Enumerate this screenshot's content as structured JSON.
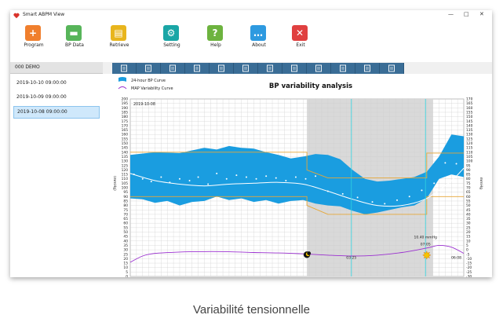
{
  "window": {
    "title": "Smart ABPM View"
  },
  "toolbar": [
    {
      "label": "Program",
      "icon": "add-user-icon",
      "color": "#f07f2d",
      "glyph": "+"
    },
    {
      "label": "BP Data",
      "icon": "folder-icon",
      "color": "#57b55a",
      "glyph": "▬"
    },
    {
      "label": "Retrieve",
      "icon": "document-icon",
      "color": "#e8b51d",
      "glyph": "▤"
    },
    {
      "label": "Setting",
      "icon": "gear-icon",
      "color": "#1aa6a6",
      "glyph": "⚙"
    },
    {
      "label": "Help",
      "icon": "help-icon",
      "color": "#6db33f",
      "glyph": "?"
    },
    {
      "label": "About",
      "icon": "chat-bubble-icon",
      "color": "#2e9ae0",
      "glyph": "…"
    },
    {
      "label": "Exit",
      "icon": "close-icon",
      "color": "#e04040",
      "glyph": "✕"
    }
  ],
  "sidebar": {
    "header": "000 DEMO",
    "items": [
      {
        "label": "2019-10-10 09:00:00",
        "selected": false
      },
      {
        "label": "2019-10-09 09:00:00",
        "selected": false
      },
      {
        "label": "2019-10-08 09:00:00",
        "selected": true
      }
    ]
  },
  "tabs": [
    "edit-icon",
    "print-list-icon",
    "line-chart-icon",
    "scatter-icon",
    "bar-chart-icon",
    "pie-icon",
    "bp-variability-icon",
    "report-icon",
    "document-icon",
    "pdf-icon",
    "printer-icon",
    "export-icon"
  ],
  "chart_data": {
    "type": "area",
    "title": "BP variability analysis",
    "date_label": "2019-10-08",
    "legend": [
      {
        "name": "24-hour BP Curve",
        "color": "#1a9de0"
      },
      {
        "name": "MAP Variability Curve",
        "color": "#9b30d0"
      }
    ],
    "left_axis": {
      "label": "(mmHg)",
      "min": 0,
      "max": 200,
      "step": 5
    },
    "right_axis": {
      "label": "mmHg",
      "min": -30,
      "max": 170,
      "step": 5
    },
    "x_range": [
      0,
      27
    ],
    "band_upper": [
      [
        0,
        137
      ],
      [
        2,
        140
      ],
      [
        4,
        139
      ],
      [
        5,
        142
      ],
      [
        6,
        145
      ],
      [
        7,
        143
      ],
      [
        8,
        147
      ],
      [
        9,
        145
      ],
      [
        10,
        144
      ],
      [
        11,
        140
      ],
      [
        12,
        137
      ],
      [
        13,
        133
      ],
      [
        14,
        135
      ],
      [
        15,
        138
      ],
      [
        16,
        137
      ],
      [
        17,
        132
      ],
      [
        18,
        120
      ],
      [
        19,
        110
      ],
      [
        20,
        107
      ],
      [
        21,
        108
      ],
      [
        22,
        110
      ],
      [
        23,
        112
      ],
      [
        24,
        118
      ],
      [
        25,
        135
      ],
      [
        26,
        160
      ],
      [
        27,
        158
      ]
    ],
    "band_lower": [
      [
        0,
        88
      ],
      [
        1,
        87
      ],
      [
        2,
        83
      ],
      [
        3,
        85
      ],
      [
        4,
        80
      ],
      [
        5,
        84
      ],
      [
        6,
        85
      ],
      [
        7,
        90
      ],
      [
        8,
        86
      ],
      [
        9,
        88
      ],
      [
        10,
        84
      ],
      [
        11,
        86
      ],
      [
        12,
        82
      ],
      [
        13,
        85
      ],
      [
        14,
        86
      ],
      [
        15,
        82
      ],
      [
        16,
        80
      ],
      [
        17,
        79
      ],
      [
        18,
        74
      ],
      [
        19,
        70
      ],
      [
        20,
        72
      ],
      [
        21,
        75
      ],
      [
        22,
        78
      ],
      [
        23,
        80
      ],
      [
        24,
        88
      ],
      [
        25,
        110
      ],
      [
        26,
        115
      ],
      [
        27,
        112
      ]
    ],
    "map_points": [
      [
        0.3,
        115
      ],
      [
        1,
        110
      ],
      [
        1.7,
        107
      ],
      [
        2.5,
        112
      ],
      [
        3.2,
        106
      ],
      [
        4,
        110
      ],
      [
        4.8,
        108
      ],
      [
        5.5,
        112
      ],
      [
        6.3,
        104
      ],
      [
        7,
        116
      ],
      [
        7.8,
        110
      ],
      [
        8.6,
        114
      ],
      [
        9.4,
        112
      ],
      [
        10.2,
        110
      ],
      [
        11,
        113
      ],
      [
        11.8,
        111
      ],
      [
        12.6,
        108
      ],
      [
        13.4,
        112
      ],
      [
        14.2,
        110
      ],
      [
        15,
        113
      ],
      [
        16,
        96
      ],
      [
        17.2,
        93
      ],
      [
        18.4,
        89
      ],
      [
        19.6,
        84
      ],
      [
        20.6,
        82
      ],
      [
        21.6,
        86
      ],
      [
        22.6,
        90
      ],
      [
        23.6,
        97
      ],
      [
        24.6,
        105
      ],
      [
        25.5,
        128
      ],
      [
        26.4,
        127
      ]
    ],
    "map_fit": [
      [
        0,
        116
      ],
      [
        2,
        108
      ],
      [
        4,
        104
      ],
      [
        6,
        102
      ],
      [
        8,
        104
      ],
      [
        10,
        105
      ],
      [
        12,
        106
      ],
      [
        14,
        104
      ],
      [
        16,
        96
      ],
      [
        18,
        87
      ],
      [
        20,
        80
      ],
      [
        22,
        80
      ],
      [
        24,
        88
      ],
      [
        26,
        108
      ],
      [
        27,
        122
      ]
    ],
    "ref_upper": [
      [
        0,
        140
      ],
      [
        10.7,
        140
      ],
      [
        10.7,
        140
      ],
      [
        14.3,
        140
      ],
      [
        14.3,
        120
      ],
      [
        16,
        111
      ],
      [
        24,
        111
      ],
      [
        24,
        139
      ],
      [
        27,
        139
      ]
    ],
    "ref_lower": [
      [
        0,
        90
      ],
      [
        10.7,
        90
      ],
      [
        10.7,
        90
      ],
      [
        14.3,
        90
      ],
      [
        14.3,
        80
      ],
      [
        16,
        70
      ],
      [
        24,
        70
      ],
      [
        24,
        90
      ],
      [
        27,
        90
      ]
    ],
    "variability_curve": [
      [
        0,
        16
      ],
      [
        1,
        23
      ],
      [
        2,
        26
      ],
      [
        4,
        27.5
      ],
      [
        6,
        28
      ],
      [
        8,
        27.8
      ],
      [
        10,
        27
      ],
      [
        12,
        26.5
      ],
      [
        14,
        25.5
      ],
      [
        16,
        24
      ],
      [
        18,
        23
      ],
      [
        20,
        24
      ],
      [
        22,
        27
      ],
      [
        24,
        32
      ],
      [
        25,
        35
      ],
      [
        26,
        33
      ],
      [
        27,
        26
      ]
    ],
    "night_period": [
      14.3,
      24.5
    ],
    "vertical_markers": [
      17.9,
      23.9
    ],
    "annotations": [
      {
        "text": "03:25",
        "x": 17.9,
        "y": 20
      },
      {
        "text": "07:05",
        "x": 23.9,
        "y": 35
      },
      {
        "text": "10.40 mmHg",
        "x": 23.9,
        "y": 43
      },
      {
        "text": "06:08",
        "x": 26.4,
        "y": 20
      }
    ],
    "moon_marker": {
      "x": 14.3,
      "y": 24.5
    },
    "sun_marker": {
      "x": 24,
      "y": 24
    },
    "colors": {
      "band": "#1a9de0",
      "ref": "#e6a737",
      "night": "#d9d9d9",
      "map_fit": "#ffffff",
      "variability": "#9b30d0",
      "marker": "#2fd4e0"
    }
  },
  "caption": "Variabilité tensionnelle"
}
